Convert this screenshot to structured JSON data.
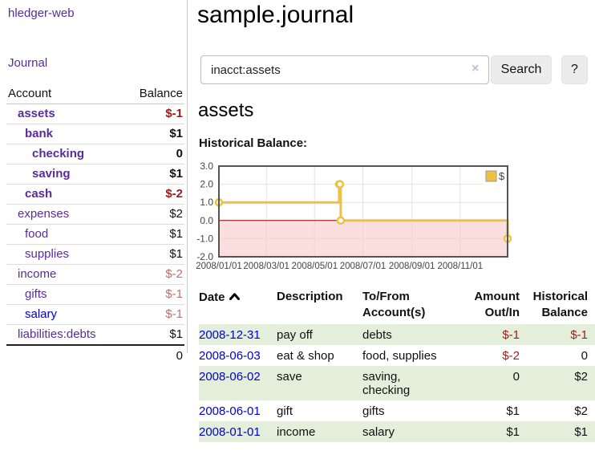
{
  "app": {
    "brand": "hledger-web",
    "nav_journal": "Journal"
  },
  "colors": {
    "link_purple": "#5a2b9d",
    "link_blue": "#0000d0",
    "negative_strong": "#9c1a1a",
    "negative_muted": "#b97272",
    "row_stripe_green": "#e3efdb",
    "chart_line_yellow": "#edc240"
  },
  "sidebar": {
    "columns": {
      "account": "Account",
      "balance": "Balance"
    },
    "rows": [
      {
        "account": "assets",
        "balance": "$-1",
        "depth": 1,
        "bold": true,
        "neg": "strong"
      },
      {
        "account": "bank",
        "balance": "$1",
        "depth": 2,
        "bold": true,
        "neg": "none"
      },
      {
        "account": "checking",
        "balance": "0",
        "depth": 3,
        "bold": true,
        "neg": "none"
      },
      {
        "account": "saving",
        "balance": "$1",
        "depth": 3,
        "bold": true,
        "neg": "none"
      },
      {
        "account": "cash",
        "balance": "$-2",
        "depth": 2,
        "bold": true,
        "neg": "strong"
      },
      {
        "account": "expenses",
        "balance": "$2",
        "depth": 1,
        "bold": false,
        "neg": "none"
      },
      {
        "account": "food",
        "balance": "$1",
        "depth": 2,
        "bold": false,
        "neg": "none"
      },
      {
        "account": "supplies",
        "balance": "$1",
        "depth": 2,
        "bold": false,
        "neg": "none"
      },
      {
        "account": "income",
        "balance": "$-2",
        "depth": 1,
        "bold": false,
        "neg": "muted"
      },
      {
        "account": "gifts",
        "balance": "$-1",
        "depth": 2,
        "bold": false,
        "neg": "muted"
      },
      {
        "account": "salary",
        "balance": "$-1",
        "depth": 2,
        "bold": false,
        "neg": "muted",
        "blue": true
      },
      {
        "account": "liabilities:debts",
        "balance": "$1",
        "depth": 1,
        "bold": false,
        "neg": "none"
      }
    ],
    "total": "0"
  },
  "header": {
    "title": "sample.journal"
  },
  "search": {
    "value": "inacct:assets",
    "clear_icon": "×",
    "button_label": "Search",
    "help_label": "?"
  },
  "account_page": {
    "heading": "assets",
    "chart_title": "Historical Balance:"
  },
  "chart_data": {
    "type": "line",
    "style": "step",
    "title": "Historical Balance:",
    "series": [
      {
        "name": "$",
        "color": "#edc240",
        "points": [
          [
            "2008-01-01",
            1
          ],
          [
            "2008-06-01",
            2
          ],
          [
            "2008-06-02",
            2
          ],
          [
            "2008-06-03",
            0
          ],
          [
            "2008-12-31",
            -1
          ]
        ]
      }
    ],
    "x_range": [
      "2008-01-01",
      "2008-12-31"
    ],
    "x_ticks": [
      "2008/01/01",
      "2008/03/01",
      "2008/05/01",
      "2008/07/01",
      "2008/09/01",
      "2008/11/01"
    ],
    "x_tick_dates": [
      "2008-01-01",
      "2008-03-01",
      "2008-05-01",
      "2008-07-01",
      "2008-09-01",
      "2008-11-01"
    ],
    "y_ticks": [
      3.0,
      2.0,
      1.0,
      0.0,
      -1.0,
      -2.0
    ],
    "ylim": [
      -2,
      3
    ],
    "grid": true,
    "negative_region_color": "#f8c8c8",
    "zero_line_color": "#8b0000",
    "legend": {
      "label": "$",
      "position": "top-right"
    }
  },
  "transactions": {
    "columns": [
      {
        "l1": "Date",
        "l2": ""
      },
      {
        "l1": "Description",
        "l2": ""
      },
      {
        "l1": "To/From",
        "l2": "Account(s)"
      },
      {
        "l1": "Amount",
        "l2": "Out/In"
      },
      {
        "l1": "Historical",
        "l2": "Balance"
      }
    ],
    "rows": [
      {
        "date": "2008-12-31",
        "description": "pay off",
        "accounts": "debts",
        "amount": "$-1",
        "balance": "$-1",
        "amount_neg": true,
        "balance_neg": true
      },
      {
        "date": "2008-06-03",
        "description": "eat & shop",
        "accounts": "food, supplies",
        "amount": "$-2",
        "balance": "0",
        "amount_neg": true,
        "balance_neg": false
      },
      {
        "date": "2008-06-02",
        "description": "save",
        "accounts": "saving, checking",
        "amount": "0",
        "balance": "$2",
        "amount_neg": false,
        "balance_neg": false
      },
      {
        "date": "2008-06-01",
        "description": "gift",
        "accounts": "gifts",
        "amount": "$1",
        "balance": "$2",
        "amount_neg": false,
        "balance_neg": false
      },
      {
        "date": "2008-01-01",
        "description": "income",
        "accounts": "salary",
        "amount": "$1",
        "balance": "$1",
        "amount_neg": false,
        "balance_neg": false
      }
    ]
  }
}
